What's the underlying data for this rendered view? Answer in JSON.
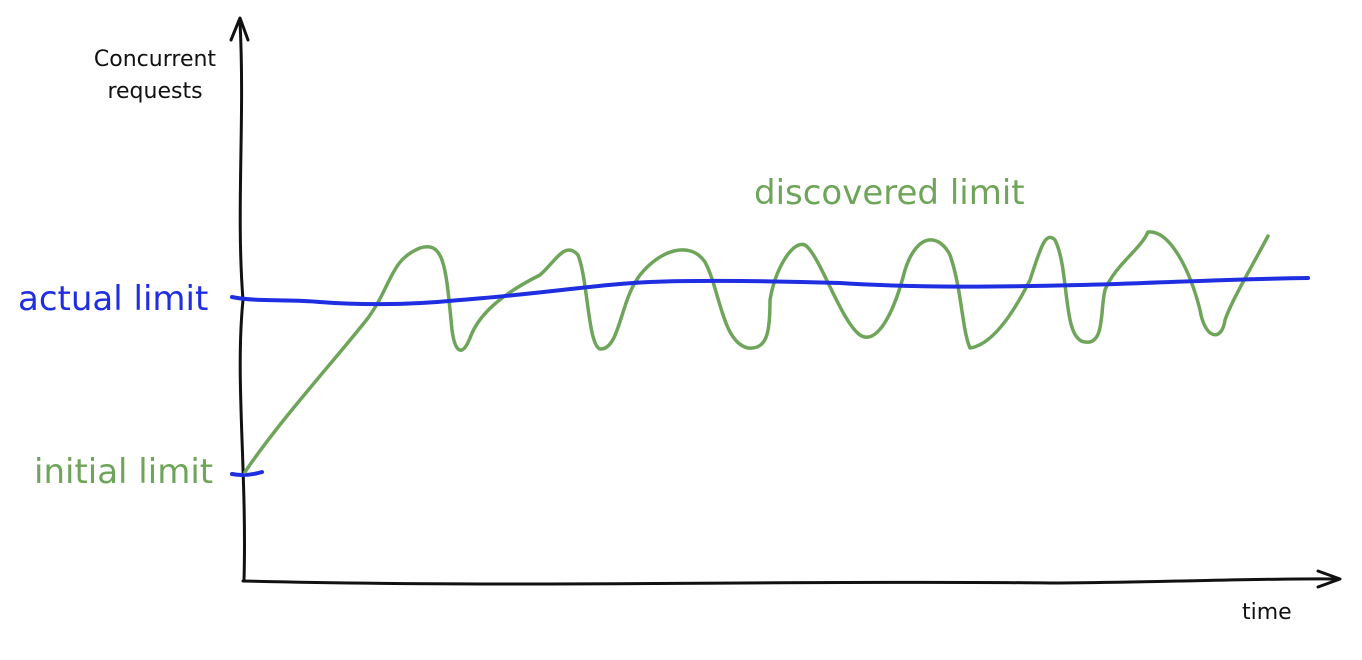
{
  "diagram": {
    "y_axis_label_lines": [
      "Concurrent",
      "requests"
    ],
    "x_axis_label": "time",
    "actual_limit_label": "actual limit",
    "initial_limit_label": "initial limit",
    "discovered_limit_label": "discovered limit",
    "colors": {
      "axis": "#111111",
      "actual_limit": "#1f2ee0",
      "discovered_limit": "#6fa55a",
      "initial_limit": "#6fa55a"
    }
  }
}
